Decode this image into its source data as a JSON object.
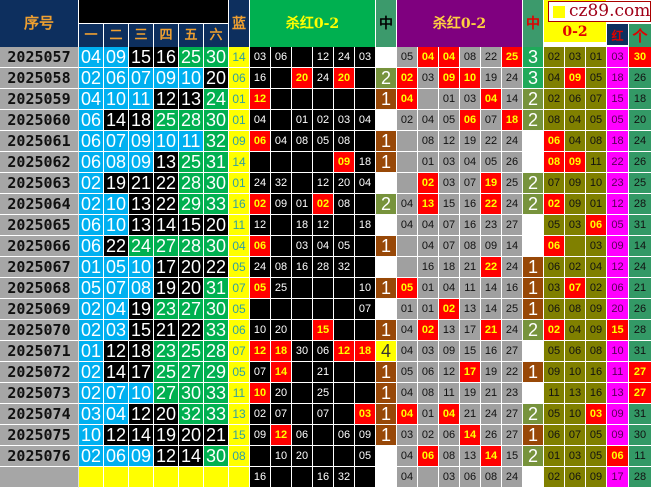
{
  "header": {
    "serial": "序号",
    "reds_top": "",
    "red_cols": [
      "一",
      "二",
      "三",
      "四",
      "五",
      "六"
    ],
    "blue": "蓝",
    "kill1": "杀红0-2",
    "mid1": "中",
    "kill2": "杀红0-2",
    "mid2": "中",
    "tail3": "0-2",
    "red_col": "红",
    "last_col": "个"
  },
  "watermark": {
    "text": "cz89.com",
    "icon": "yellow-square-icon"
  },
  "colors": {
    "red_low": "#00b0f0",
    "red_mid": "#000000",
    "red_high": "#00b050",
    "hit": "#ff0000",
    "hit_text": "#ffff00"
  },
  "rows": [
    {
      "serial": "2025057",
      "reds": [
        "04",
        "09",
        "15",
        "16",
        "25",
        "30"
      ],
      "blue": "14",
      "kill1": [
        "03",
        "06",
        "",
        "12",
        "24",
        "03"
      ],
      "mid1": "",
      "kill2": [
        "05",
        "04",
        "04",
        "08",
        "22",
        "25"
      ],
      "mid2": "3",
      "tail3": [
        "02",
        "03",
        "01"
      ],
      "red_col": "03",
      "last": "30"
    },
    {
      "serial": "2025058",
      "reds": [
        "02",
        "06",
        "07",
        "09",
        "10",
        "20"
      ],
      "blue": "06",
      "kill1": [
        "16",
        "",
        "20",
        "24",
        "20",
        ""
      ],
      "mid1": "2",
      "kill2": [
        "02",
        "03",
        "09",
        "10",
        "19",
        "24"
      ],
      "mid2": "3",
      "tail3": [
        "04",
        "09",
        "05"
      ],
      "red_col": "18",
      "last": "26"
    },
    {
      "serial": "2025059",
      "reds": [
        "04",
        "10",
        "11",
        "12",
        "13",
        "24"
      ],
      "blue": "01",
      "kill1": [
        "12",
        "",
        "",
        "",
        "",
        ""
      ],
      "mid1": "1",
      "kill2": [
        "04",
        "",
        "01",
        "03",
        "04",
        "14"
      ],
      "mid2": "2",
      "tail3": [
        "02",
        "06",
        "07"
      ],
      "red_col": "15",
      "last": "18"
    },
    {
      "serial": "2025060",
      "reds": [
        "06",
        "14",
        "18",
        "25",
        "28",
        "30"
      ],
      "blue": "01",
      "kill1": [
        "04",
        "",
        "01",
        "02",
        "03",
        "04"
      ],
      "mid1": "",
      "kill2": [
        "02",
        "04",
        "05",
        "06",
        "07",
        "18"
      ],
      "mid2": "2",
      "tail3": [
        "08",
        "04",
        "05"
      ],
      "red_col": "05",
      "last": "20"
    },
    {
      "serial": "2025061",
      "reds": [
        "06",
        "07",
        "09",
        "10",
        "11",
        "32"
      ],
      "blue": "09",
      "kill1": [
        "06",
        "04",
        "08",
        "05",
        "08",
        ""
      ],
      "mid1": "1",
      "kill2": [
        "",
        "08",
        "12",
        "19",
        "22",
        "24"
      ],
      "mid2": "",
      "tail3": [
        "06",
        "04",
        "08"
      ],
      "red_col": "18",
      "last": "24"
    },
    {
      "serial": "2025062",
      "reds": [
        "06",
        "08",
        "09",
        "13",
        "25",
        "31"
      ],
      "blue": "14",
      "kill1": [
        "",
        "",
        "",
        "",
        "09",
        "18"
      ],
      "mid1": "1",
      "kill2": [
        "",
        "01",
        "03",
        "04",
        "05",
        "26"
      ],
      "mid2": "",
      "tail3": [
        "08",
        "09",
        "11"
      ],
      "red_col": "22",
      "last": "26"
    },
    {
      "serial": "2025063",
      "reds": [
        "02",
        "19",
        "21",
        "22",
        "28",
        "30"
      ],
      "blue": "01",
      "kill1": [
        "24",
        "32",
        "",
        "12",
        "20",
        "04"
      ],
      "mid1": "",
      "kill2": [
        "",
        "02",
        "03",
        "07",
        "19",
        "25"
      ],
      "mid2": "2",
      "tail3": [
        "07",
        "09",
        "10"
      ],
      "red_col": "23",
      "last": "25"
    },
    {
      "serial": "2025064",
      "reds": [
        "02",
        "10",
        "13",
        "22",
        "29",
        "33"
      ],
      "blue": "16",
      "kill1": [
        "02",
        "09",
        "01",
        "02",
        "08",
        ""
      ],
      "mid1": "2",
      "kill2": [
        "04",
        "13",
        "15",
        "16",
        "22",
        "24"
      ],
      "mid2": "2",
      "tail3": [
        "02",
        "09",
        "01"
      ],
      "red_col": "12",
      "last": "28"
    },
    {
      "serial": "2025065",
      "reds": [
        "06",
        "10",
        "13",
        "14",
        "15",
        "20"
      ],
      "blue": "11",
      "kill1": [
        "12",
        "",
        "18",
        "12",
        "",
        "18"
      ],
      "mid1": "",
      "kill2": [
        "04",
        "04",
        "07",
        "16",
        "23",
        "27"
      ],
      "mid2": "",
      "tail3": [
        "05",
        "03",
        "06"
      ],
      "red_col": "05",
      "last": "31"
    },
    {
      "serial": "2025066",
      "reds": [
        "06",
        "22",
        "24",
        "27",
        "28",
        "30"
      ],
      "blue": "04",
      "kill1": [
        "06",
        "",
        "03",
        "04",
        "05",
        ""
      ],
      "mid1": "1",
      "kill2": [
        "",
        "04",
        "07",
        "08",
        "09",
        "14"
      ],
      "mid2": "",
      "tail3": [
        "06",
        "",
        "03"
      ],
      "red_col": "09",
      "last": "14"
    },
    {
      "serial": "2025067",
      "reds": [
        "01",
        "05",
        "10",
        "17",
        "20",
        "22"
      ],
      "blue": "05",
      "kill1": [
        "24",
        "08",
        "16",
        "28",
        "32",
        ""
      ],
      "mid1": "",
      "kill2": [
        "",
        "16",
        "18",
        "21",
        "22",
        "24"
      ],
      "mid2": "1",
      "tail3": [
        "06",
        "02",
        "04"
      ],
      "red_col": "12",
      "last": "24"
    },
    {
      "serial": "2025068",
      "reds": [
        "05",
        "07",
        "08",
        "19",
        "20",
        "31"
      ],
      "blue": "07",
      "kill1": [
        "05",
        "25",
        "",
        "",
        "",
        "10"
      ],
      "mid1": "1",
      "kill2": [
        "05",
        "01",
        "04",
        "11",
        "14",
        "16"
      ],
      "mid2": "1",
      "tail3": [
        "03",
        "07",
        "02"
      ],
      "red_col": "06",
      "last": "21"
    },
    {
      "serial": "2025069",
      "reds": [
        "02",
        "04",
        "19",
        "23",
        "27",
        "30"
      ],
      "blue": "05",
      "kill1": [
        "",
        "",
        "",
        "",
        "",
        "07"
      ],
      "mid1": "",
      "kill2": [
        "01",
        "01",
        "02",
        "13",
        "14",
        "25"
      ],
      "mid2": "1",
      "tail3": [
        "06",
        "08",
        "09"
      ],
      "red_col": "20",
      "last": "26"
    },
    {
      "serial": "2025070",
      "reds": [
        "02",
        "03",
        "15",
        "21",
        "22",
        "33"
      ],
      "blue": "06",
      "kill1": [
        "10",
        "20",
        "",
        "15",
        "",
        ""
      ],
      "mid1": "1",
      "kill2": [
        "04",
        "02",
        "13",
        "17",
        "21",
        "24"
      ],
      "mid2": "2",
      "tail3": [
        "02",
        "04",
        "09"
      ],
      "red_col": "15",
      "last": "28"
    },
    {
      "serial": "2025071",
      "reds": [
        "01",
        "12",
        "18",
        "23",
        "25",
        "28"
      ],
      "blue": "07",
      "kill1": [
        "12",
        "18",
        "30",
        "06",
        "12",
        "18"
      ],
      "mid1": "4",
      "kill2": [
        "04",
        "03",
        "09",
        "15",
        "16",
        "27"
      ],
      "mid2": "",
      "tail3": [
        "05",
        "06",
        "08"
      ],
      "red_col": "10",
      "last": "31"
    },
    {
      "serial": "2025072",
      "reds": [
        "02",
        "14",
        "17",
        "25",
        "27",
        "29"
      ],
      "blue": "05",
      "kill1": [
        "07",
        "14",
        "",
        "21",
        "",
        ""
      ],
      "mid1": "1",
      "kill2": [
        "05",
        "06",
        "12",
        "17",
        "19",
        "22"
      ],
      "mid2": "1",
      "tail3": [
        "09",
        "10",
        "16"
      ],
      "red_col": "11",
      "last": "27"
    },
    {
      "serial": "2025073",
      "reds": [
        "02",
        "07",
        "10",
        "27",
        "30",
        "33"
      ],
      "blue": "11",
      "kill1": [
        "10",
        "20",
        "",
        "25",
        "",
        ""
      ],
      "mid1": "1",
      "kill2": [
        "04",
        "08",
        "11",
        "19",
        "21",
        "23"
      ],
      "mid2": "",
      "tail3": [
        "11",
        "13",
        "16"
      ],
      "red_col": "13",
      "last": "27"
    },
    {
      "serial": "2025074",
      "reds": [
        "03",
        "04",
        "12",
        "20",
        "32",
        "33"
      ],
      "blue": "13",
      "kill1": [
        "02",
        "07",
        "",
        "07",
        "",
        "03"
      ],
      "mid1": "1",
      "kill2": [
        "04",
        "01",
        "04",
        "21",
        "24",
        "27"
      ],
      "mid2": "2",
      "tail3": [
        "05",
        "10",
        "03"
      ],
      "red_col": "09",
      "last": "31"
    },
    {
      "serial": "2025075",
      "reds": [
        "10",
        "12",
        "14",
        "19",
        "20",
        "21"
      ],
      "blue": "15",
      "kill1": [
        "09",
        "12",
        "06",
        "",
        "06",
        "09"
      ],
      "mid1": "1",
      "kill2": [
        "03",
        "02",
        "06",
        "14",
        "26",
        "27"
      ],
      "mid2": "1",
      "tail3": [
        "06",
        "07",
        "05"
      ],
      "red_col": "09",
      "last": "30"
    },
    {
      "serial": "2025076",
      "reds": [
        "02",
        "06",
        "09",
        "12",
        "14",
        "30"
      ],
      "blue": "08",
      "kill1": [
        "",
        "10",
        "20",
        "",
        "",
        "05"
      ],
      "mid1": "",
      "kill2": [
        "04",
        "06",
        "08",
        "13",
        "14",
        "15"
      ],
      "mid2": "2",
      "tail3": [
        "01",
        "03",
        "05"
      ],
      "red_col": "06",
      "last": "11"
    },
    {
      "serial": "",
      "reds": [
        "",
        "",
        "",
        "",
        "",
        ""
      ],
      "blue": "",
      "kill1": [
        "16",
        "",
        "",
        "16",
        "32",
        ""
      ],
      "mid1": "",
      "kill2": [
        "04",
        "",
        "03",
        "06",
        "08",
        "24"
      ],
      "mid2": "",
      "tail3": [
        "02",
        "06",
        "09"
      ],
      "red_col": "17",
      "last": "28"
    }
  ]
}
